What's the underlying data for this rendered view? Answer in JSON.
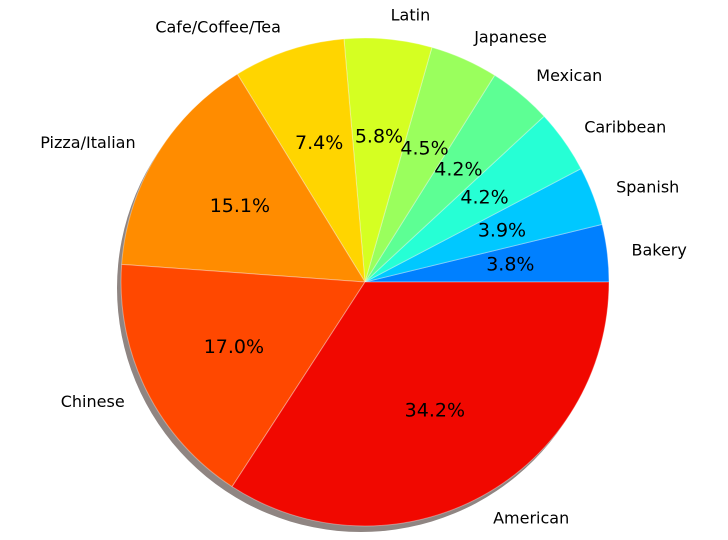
{
  "chart_data": {
    "type": "pie",
    "shadow": true,
    "colormap": "jet",
    "slices": [
      {
        "label": "Bakery",
        "value": 3.8,
        "pct_label": "3.8%",
        "color": "#0080ff"
      },
      {
        "label": "Spanish",
        "value": 3.9,
        "pct_label": "3.9%",
        "color": "#00c8ff"
      },
      {
        "label": "Caribbean",
        "value": 4.2,
        "pct_label": "4.2%",
        "color": "#26ffd5"
      },
      {
        "label": "Mexican",
        "value": 4.2,
        "pct_label": "4.2%",
        "color": "#5dff94"
      },
      {
        "label": "Japanese",
        "value": 4.5,
        "pct_label": "4.5%",
        "color": "#9aff5d"
      },
      {
        "label": "Latin",
        "value": 5.8,
        "pct_label": "5.8%",
        "color": "#d5ff22"
      },
      {
        "label": "Cafe/Coffee/Tea",
        "value": 7.4,
        "pct_label": "7.4%",
        "color": "#ffd500"
      },
      {
        "label": "Pizza/Italian",
        "value": 15.1,
        "pct_label": "15.1%",
        "color": "#ff8c00"
      },
      {
        "label": "Chinese",
        "value": 17.0,
        "pct_label": "17.0%",
        "color": "#ff4800"
      },
      {
        "label": "American",
        "value": 34.2,
        "pct_label": "34.2%",
        "color": "#f10800"
      }
    ]
  }
}
